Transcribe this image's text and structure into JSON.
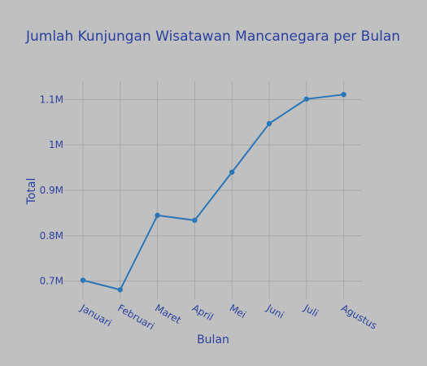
{
  "colors": {
    "background": "#c0c0c0",
    "text": "#2a3f9f",
    "line": "#2a76b8",
    "grid": "#a8a8a8"
  },
  "chart_data": {
    "type": "line",
    "title": "Jumlah Kunjungan Wisatawan Mancanegara per Bulan",
    "xlabel": "Bulan",
    "ylabel": "Total",
    "categories": [
      "Januari",
      "Februari",
      "Maret",
      "April",
      "Mei",
      "Juni",
      "Juli",
      "Agustus"
    ],
    "series": [
      {
        "values": [
          702000,
          681000,
          845000,
          834000,
          940000,
          1047000,
          1101000,
          1111000
        ]
      }
    ],
    "y_ticks": [
      700000,
      800000,
      900000,
      1000000,
      1100000
    ],
    "y_tick_labels": [
      "0.7M",
      "0.8M",
      "0.9M",
      "1M",
      "1.1M"
    ],
    "ylim": [
      660000,
      1140000
    ],
    "grid": true,
    "legend": "none"
  }
}
